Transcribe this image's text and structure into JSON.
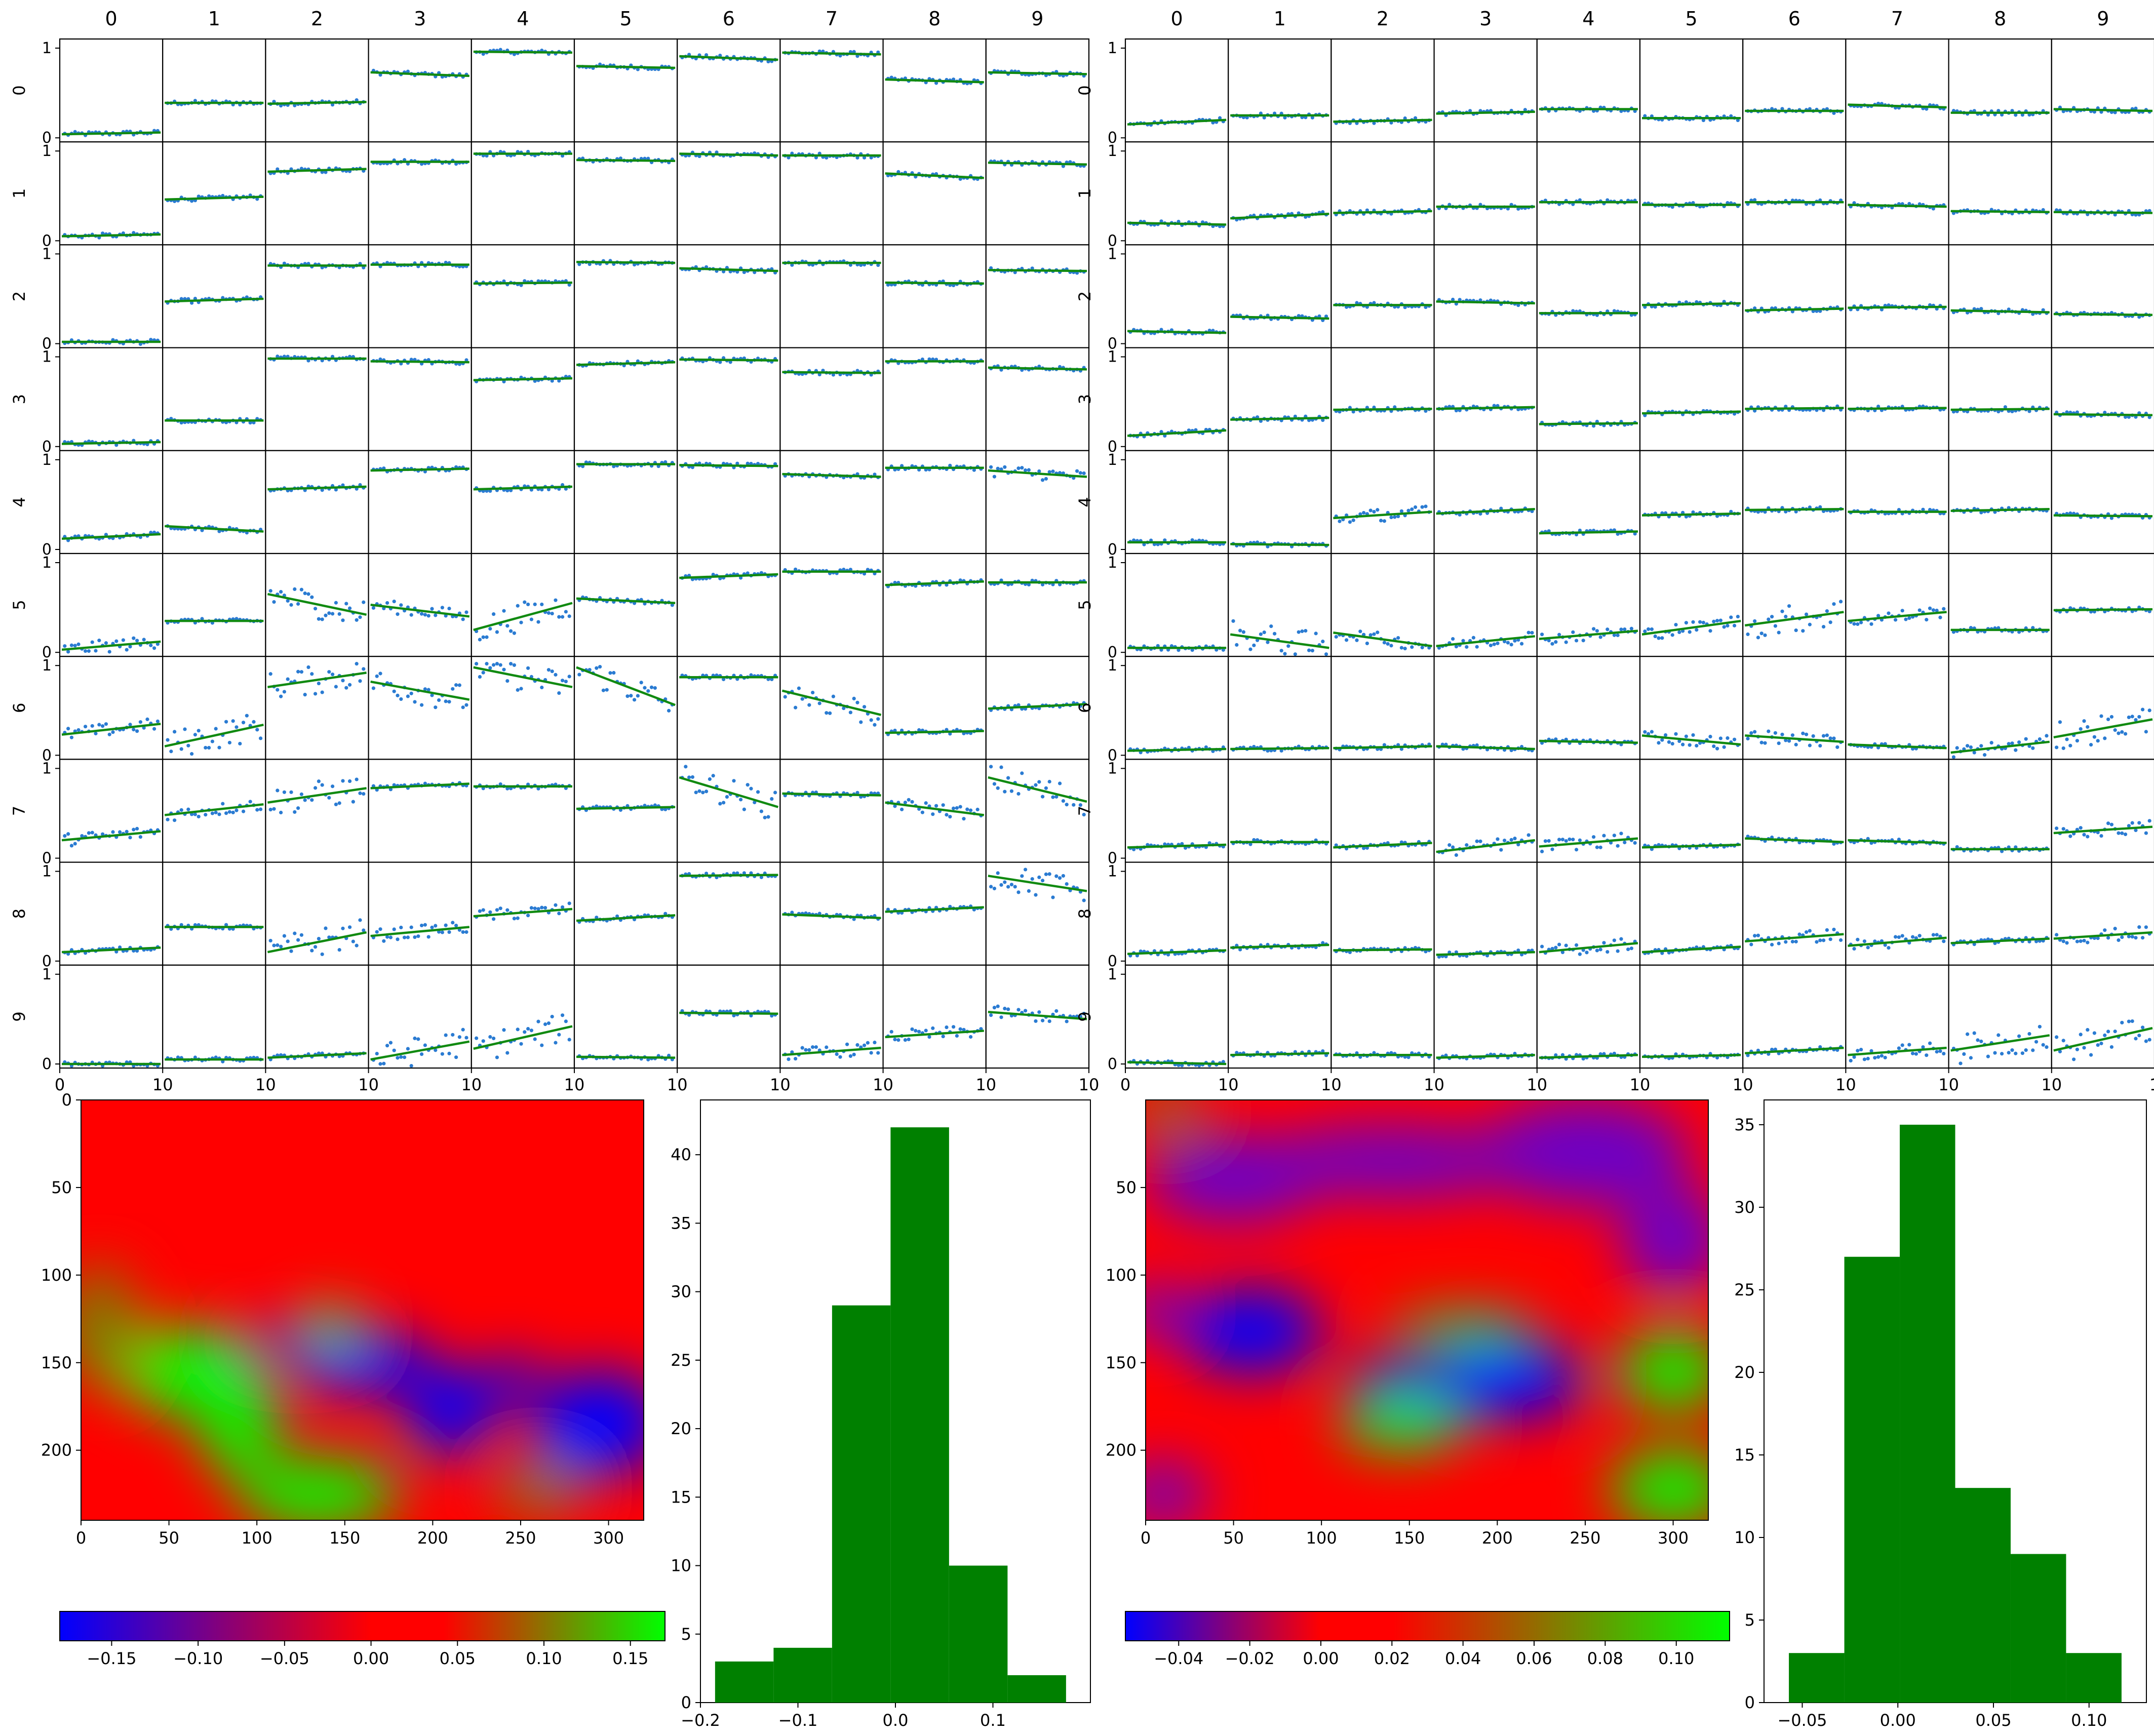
{
  "chart_data": [
    {
      "type": "scatter",
      "panel": "left",
      "grid_rows": [
        "0",
        "1",
        "2",
        "3",
        "4",
        "5",
        "6",
        "7",
        "8",
        "9"
      ],
      "grid_cols": [
        "0",
        "1",
        "2",
        "3",
        "4",
        "5",
        "6",
        "7",
        "8",
        "9"
      ],
      "x_tick_labels": [
        "0",
        "10",
        "10",
        "10",
        "10",
        "10",
        "10",
        "10",
        "10",
        "10",
        "10"
      ],
      "y_tick_labels": [
        "0",
        "1"
      ],
      "fit_levels": [
        [
          [
            0.04,
            0.06
          ],
          [
            0.39,
            0.39
          ],
          [
            0.38,
            0.4
          ],
          [
            0.73,
            0.69
          ],
          [
            0.96,
            0.95
          ],
          [
            0.8,
            0.78
          ],
          [
            0.91,
            0.87
          ],
          [
            0.95,
            0.93
          ],
          [
            0.65,
            0.62
          ],
          [
            0.73,
            0.71
          ]
        ],
        [
          [
            0.05,
            0.07
          ],
          [
            0.46,
            0.49
          ],
          [
            0.77,
            0.8
          ],
          [
            0.88,
            0.88
          ],
          [
            0.97,
            0.97
          ],
          [
            0.9,
            0.89
          ],
          [
            0.97,
            0.95
          ],
          [
            0.95,
            0.95
          ],
          [
            0.75,
            0.7
          ],
          [
            0.87,
            0.85
          ]
        ],
        [
          [
            0.02,
            0.02
          ],
          [
            0.47,
            0.5
          ],
          [
            0.87,
            0.87
          ],
          [
            0.88,
            0.88
          ],
          [
            0.67,
            0.68
          ],
          [
            0.91,
            0.9
          ],
          [
            0.84,
            0.81
          ],
          [
            0.9,
            0.9
          ],
          [
            0.68,
            0.67
          ],
          [
            0.82,
            0.81
          ]
        ],
        [
          [
            0.03,
            0.05
          ],
          [
            0.29,
            0.29
          ],
          [
            0.98,
            0.98
          ],
          [
            0.95,
            0.94
          ],
          [
            0.74,
            0.76
          ],
          [
            0.91,
            0.94
          ],
          [
            0.97,
            0.96
          ],
          [
            0.83,
            0.82
          ],
          [
            0.95,
            0.95
          ],
          [
            0.88,
            0.86
          ]
        ],
        [
          [
            0.12,
            0.17
          ],
          [
            0.26,
            0.2
          ],
          [
            0.67,
            0.7
          ],
          [
            0.88,
            0.9
          ],
          [
            0.67,
            0.7
          ],
          [
            0.95,
            0.95
          ],
          [
            0.94,
            0.93
          ],
          [
            0.84,
            0.81
          ],
          [
            0.91,
            0.91
          ],
          [
            0.88,
            0.81
          ]
        ],
        [
          [
            0.03,
            0.12
          ],
          [
            0.35,
            0.35
          ],
          [
            0.65,
            0.42
          ],
          [
            0.53,
            0.4
          ],
          [
            0.25,
            0.55
          ],
          [
            0.6,
            0.55
          ],
          [
            0.83,
            0.87
          ],
          [
            0.9,
            0.9
          ],
          [
            0.75,
            0.79
          ],
          [
            0.78,
            0.78
          ]
        ],
        [
          [
            0.23,
            0.35
          ],
          [
            0.1,
            0.34
          ],
          [
            0.76,
            0.92
          ],
          [
            0.82,
            0.62
          ],
          [
            0.98,
            0.76
          ],
          [
            0.98,
            0.56
          ],
          [
            0.87,
            0.87
          ],
          [
            0.72,
            0.45
          ],
          [
            0.25,
            0.27
          ],
          [
            0.52,
            0.57
          ]
        ],
        [
          [
            0.2,
            0.3
          ],
          [
            0.48,
            0.6
          ],
          [
            0.62,
            0.78
          ],
          [
            0.78,
            0.83
          ],
          [
            0.8,
            0.8
          ],
          [
            0.55,
            0.57
          ],
          [
            0.9,
            0.57
          ],
          [
            0.72,
            0.7
          ],
          [
            0.62,
            0.48
          ],
          [
            0.9,
            0.63
          ]
        ],
        [
          [
            0.1,
            0.15
          ],
          [
            0.38,
            0.38
          ],
          [
            0.1,
            0.32
          ],
          [
            0.28,
            0.38
          ],
          [
            0.5,
            0.58
          ],
          [
            0.45,
            0.51
          ],
          [
            0.95,
            0.96
          ],
          [
            0.52,
            0.48
          ],
          [
            0.55,
            0.6
          ],
          [
            0.95,
            0.78
          ]
        ],
        [
          [
            0.0,
            0.0
          ],
          [
            0.05,
            0.05
          ],
          [
            0.07,
            0.12
          ],
          [
            0.05,
            0.25
          ],
          [
            0.17,
            0.42
          ],
          [
            0.08,
            0.07
          ],
          [
            0.57,
            0.56
          ],
          [
            0.1,
            0.18
          ],
          [
            0.3,
            0.37
          ],
          [
            0.58,
            0.5
          ]
        ]
      ]
    },
    {
      "type": "scatter",
      "panel": "right",
      "grid_rows": [
        "0",
        "1",
        "2",
        "3",
        "4",
        "5",
        "6",
        "7",
        "8",
        "9"
      ],
      "grid_cols": [
        "0",
        "1",
        "2",
        "3",
        "4",
        "5",
        "6",
        "7",
        "8",
        "9"
      ],
      "x_tick_labels": [
        "0",
        "10",
        "10",
        "10",
        "10",
        "10",
        "10",
        "10",
        "10",
        "10",
        "1"
      ],
      "y_tick_labels": [
        "0",
        "1"
      ],
      "fit_levels": [
        [
          [
            0.15,
            0.2
          ],
          [
            0.25,
            0.25
          ],
          [
            0.18,
            0.2
          ],
          [
            0.27,
            0.29
          ],
          [
            0.32,
            0.32
          ],
          [
            0.22,
            0.22
          ],
          [
            0.3,
            0.3
          ],
          [
            0.37,
            0.34
          ],
          [
            0.28,
            0.28
          ],
          [
            0.32,
            0.3
          ]
        ],
        [
          [
            0.2,
            0.18
          ],
          [
            0.25,
            0.3
          ],
          [
            0.31,
            0.33
          ],
          [
            0.38,
            0.38
          ],
          [
            0.43,
            0.43
          ],
          [
            0.4,
            0.4
          ],
          [
            0.43,
            0.43
          ],
          [
            0.4,
            0.38
          ],
          [
            0.33,
            0.32
          ],
          [
            0.32,
            0.31
          ]
        ],
        [
          [
            0.14,
            0.12
          ],
          [
            0.3,
            0.28
          ],
          [
            0.43,
            0.43
          ],
          [
            0.47,
            0.45
          ],
          [
            0.34,
            0.34
          ],
          [
            0.43,
            0.45
          ],
          [
            0.37,
            0.39
          ],
          [
            0.4,
            0.41
          ],
          [
            0.37,
            0.35
          ],
          [
            0.33,
            0.32
          ]
        ],
        [
          [
            0.12,
            0.18
          ],
          [
            0.3,
            0.32
          ],
          [
            0.41,
            0.42
          ],
          [
            0.42,
            0.44
          ],
          [
            0.25,
            0.26
          ],
          [
            0.37,
            0.39
          ],
          [
            0.42,
            0.43
          ],
          [
            0.42,
            0.43
          ],
          [
            0.41,
            0.42
          ],
          [
            0.36,
            0.35
          ]
        ],
        [
          [
            0.08,
            0.08
          ],
          [
            0.06,
            0.05
          ],
          [
            0.35,
            0.42
          ],
          [
            0.4,
            0.45
          ],
          [
            0.18,
            0.2
          ],
          [
            0.38,
            0.4
          ],
          [
            0.44,
            0.45
          ],
          [
            0.42,
            0.42
          ],
          [
            0.43,
            0.45
          ],
          [
            0.38,
            0.37
          ]
        ],
        [
          [
            0.05,
            0.05
          ],
          [
            0.2,
            0.05
          ],
          [
            0.22,
            0.07
          ],
          [
            0.07,
            0.18
          ],
          [
            0.15,
            0.24
          ],
          [
            0.2,
            0.35
          ],
          [
            0.3,
            0.45
          ],
          [
            0.35,
            0.45
          ],
          [
            0.25,
            0.25
          ],
          [
            0.47,
            0.48
          ]
        ],
        [
          [
            0.05,
            0.07
          ],
          [
            0.07,
            0.08
          ],
          [
            0.08,
            0.1
          ],
          [
            0.1,
            0.07
          ],
          [
            0.16,
            0.14
          ],
          [
            0.22,
            0.12
          ],
          [
            0.22,
            0.15
          ],
          [
            0.12,
            0.08
          ],
          [
            0.03,
            0.15
          ],
          [
            0.2,
            0.4
          ]
        ],
        [
          [
            0.12,
            0.15
          ],
          [
            0.18,
            0.18
          ],
          [
            0.12,
            0.17
          ],
          [
            0.07,
            0.2
          ],
          [
            0.13,
            0.22
          ],
          [
            0.12,
            0.15
          ],
          [
            0.22,
            0.18
          ],
          [
            0.2,
            0.17
          ],
          [
            0.1,
            0.1
          ],
          [
            0.28,
            0.35
          ]
        ],
        [
          [
            0.08,
            0.12
          ],
          [
            0.15,
            0.18
          ],
          [
            0.12,
            0.13
          ],
          [
            0.07,
            0.1
          ],
          [
            0.1,
            0.2
          ],
          [
            0.1,
            0.16
          ],
          [
            0.22,
            0.3
          ],
          [
            0.17,
            0.26
          ],
          [
            0.2,
            0.25
          ],
          [
            0.25,
            0.32
          ]
        ],
        [
          [
            0.02,
            0.0
          ],
          [
            0.1,
            0.12
          ],
          [
            0.1,
            0.1
          ],
          [
            0.07,
            0.1
          ],
          [
            0.07,
            0.1
          ],
          [
            0.08,
            0.1
          ],
          [
            0.12,
            0.18
          ],
          [
            0.1,
            0.18
          ],
          [
            0.15,
            0.32
          ],
          [
            0.15,
            0.4
          ]
        ]
      ]
    },
    {
      "type": "heatmap",
      "panel": "left",
      "x_ticks": [
        0,
        50,
        100,
        150,
        200,
        250,
        300
      ],
      "y_ticks": [
        0,
        50,
        100,
        150,
        200
      ],
      "xlim": [
        0,
        320
      ],
      "ylim": [
        240,
        0
      ],
      "blobs": [
        {
          "x": 160,
          "y": 150,
          "rx": 40,
          "ry": 18,
          "kind": "blue"
        },
        {
          "x": 210,
          "y": 178,
          "rx": 25,
          "ry": 25,
          "kind": "blue"
        },
        {
          "x": 295,
          "y": 185,
          "rx": 38,
          "ry": 30,
          "kind": "blue"
        },
        {
          "x": 245,
          "y": 160,
          "rx": 18,
          "ry": 12,
          "kind": "blue"
        },
        {
          "x": 125,
          "y": 138,
          "rx": 40,
          "ry": 10,
          "kind": "purple"
        },
        {
          "x": 60,
          "y": 155,
          "rx": 35,
          "ry": 25,
          "kind": "green"
        },
        {
          "x": 90,
          "y": 185,
          "rx": 22,
          "ry": 30,
          "kind": "green"
        },
        {
          "x": 135,
          "y": 225,
          "rx": 45,
          "ry": 20,
          "kind": "green"
        },
        {
          "x": 142,
          "y": 128,
          "rx": 12,
          "ry": 12,
          "kind": "green"
        },
        {
          "x": 10,
          "y": 130,
          "rx": 22,
          "ry": 35,
          "kind": "olive"
        },
        {
          "x": 260,
          "y": 222,
          "rx": 25,
          "ry": 15,
          "kind": "olive"
        }
      ],
      "colorbar": {
        "ticks": [
          "−0.15",
          "−0.10",
          "−0.05",
          "0.00",
          "0.05",
          "0.10",
          "0.15"
        ],
        "min": -0.18,
        "max": 0.17,
        "colors": [
          "#0000ff",
          "#ff0000",
          "#00ff00"
        ]
      }
    },
    {
      "type": "heatmap",
      "panel": "right",
      "x_ticks": [
        0,
        50,
        100,
        150,
        200,
        250,
        300
      ],
      "y_ticks": [
        50,
        100,
        150,
        200
      ],
      "xlim": [
        0,
        320
      ],
      "ylim": [
        240,
        0
      ],
      "blobs": [
        {
          "x": 50,
          "y": 45,
          "rx": 50,
          "ry": 25,
          "kind": "purple"
        },
        {
          "x": 140,
          "y": 35,
          "rx": 80,
          "ry": 20,
          "kind": "purple"
        },
        {
          "x": 250,
          "y": 30,
          "rx": 60,
          "ry": 30,
          "kind": "purple"
        },
        {
          "x": 300,
          "y": 80,
          "rx": 30,
          "ry": 30,
          "kind": "purple"
        },
        {
          "x": 5,
          "y": 120,
          "rx": 20,
          "ry": 15,
          "kind": "purple"
        },
        {
          "x": 60,
          "y": 132,
          "rx": 40,
          "ry": 24,
          "kind": "blue"
        },
        {
          "x": 205,
          "y": 160,
          "rx": 45,
          "ry": 22,
          "kind": "blue"
        },
        {
          "x": 145,
          "y": 158,
          "rx": 30,
          "ry": 10,
          "kind": "blue"
        },
        {
          "x": 180,
          "y": 130,
          "rx": 40,
          "ry": 8,
          "kind": "green"
        },
        {
          "x": 300,
          "y": 155,
          "rx": 30,
          "ry": 22,
          "kind": "green"
        },
        {
          "x": 145,
          "y": 185,
          "rx": 35,
          "ry": 15,
          "kind": "green"
        },
        {
          "x": 300,
          "y": 222,
          "rx": 35,
          "ry": 22,
          "kind": "green"
        },
        {
          "x": 12,
          "y": 5,
          "rx": 20,
          "ry": 12,
          "kind": "olive"
        },
        {
          "x": 10,
          "y": 225,
          "rx": 25,
          "ry": 18,
          "kind": "purple"
        }
      ],
      "colorbar": {
        "ticks": [
          "−0.04",
          "−0.02",
          "0.00",
          "0.02",
          "0.04",
          "0.06",
          "0.08",
          "0.10"
        ],
        "min": -0.055,
        "max": 0.115,
        "colors": [
          "#0000ff",
          "#ff0000",
          "#00ff00"
        ]
      }
    },
    {
      "type": "bar",
      "panel": "left",
      "histogram": true,
      "bin_edges": [
        -0.185,
        -0.125,
        -0.065,
        -0.005,
        0.055,
        0.115,
        0.175
      ],
      "values": [
        3,
        4,
        29,
        42,
        10,
        2
      ],
      "xlim": [
        -0.2,
        0.2
      ],
      "ylim": [
        0,
        44
      ],
      "x_ticks": [
        "−0.2",
        "−0.1",
        "0.0",
        "0.1"
      ],
      "x_tick_values": [
        -0.2,
        -0.1,
        0.0,
        0.1
      ],
      "y_ticks": [
        0,
        5,
        10,
        15,
        20,
        25,
        30,
        35,
        40
      ],
      "color": "#008000"
    },
    {
      "type": "bar",
      "panel": "right",
      "histogram": true,
      "bin_edges": [
        -0.057,
        -0.028,
        0.001,
        0.03,
        0.059,
        0.088,
        0.117
      ],
      "values": [
        3,
        27,
        35,
        13,
        9,
        3
      ],
      "xlim": [
        -0.07,
        0.13
      ],
      "ylim": [
        0,
        36.5
      ],
      "x_ticks": [
        "−0.05",
        "0.00",
        "0.05",
        "0.10"
      ],
      "x_tick_values": [
        -0.05,
        0.0,
        0.05,
        0.1
      ],
      "y_ticks": [
        0,
        5,
        10,
        15,
        20,
        25,
        30,
        35
      ],
      "color": "#008000"
    }
  ]
}
